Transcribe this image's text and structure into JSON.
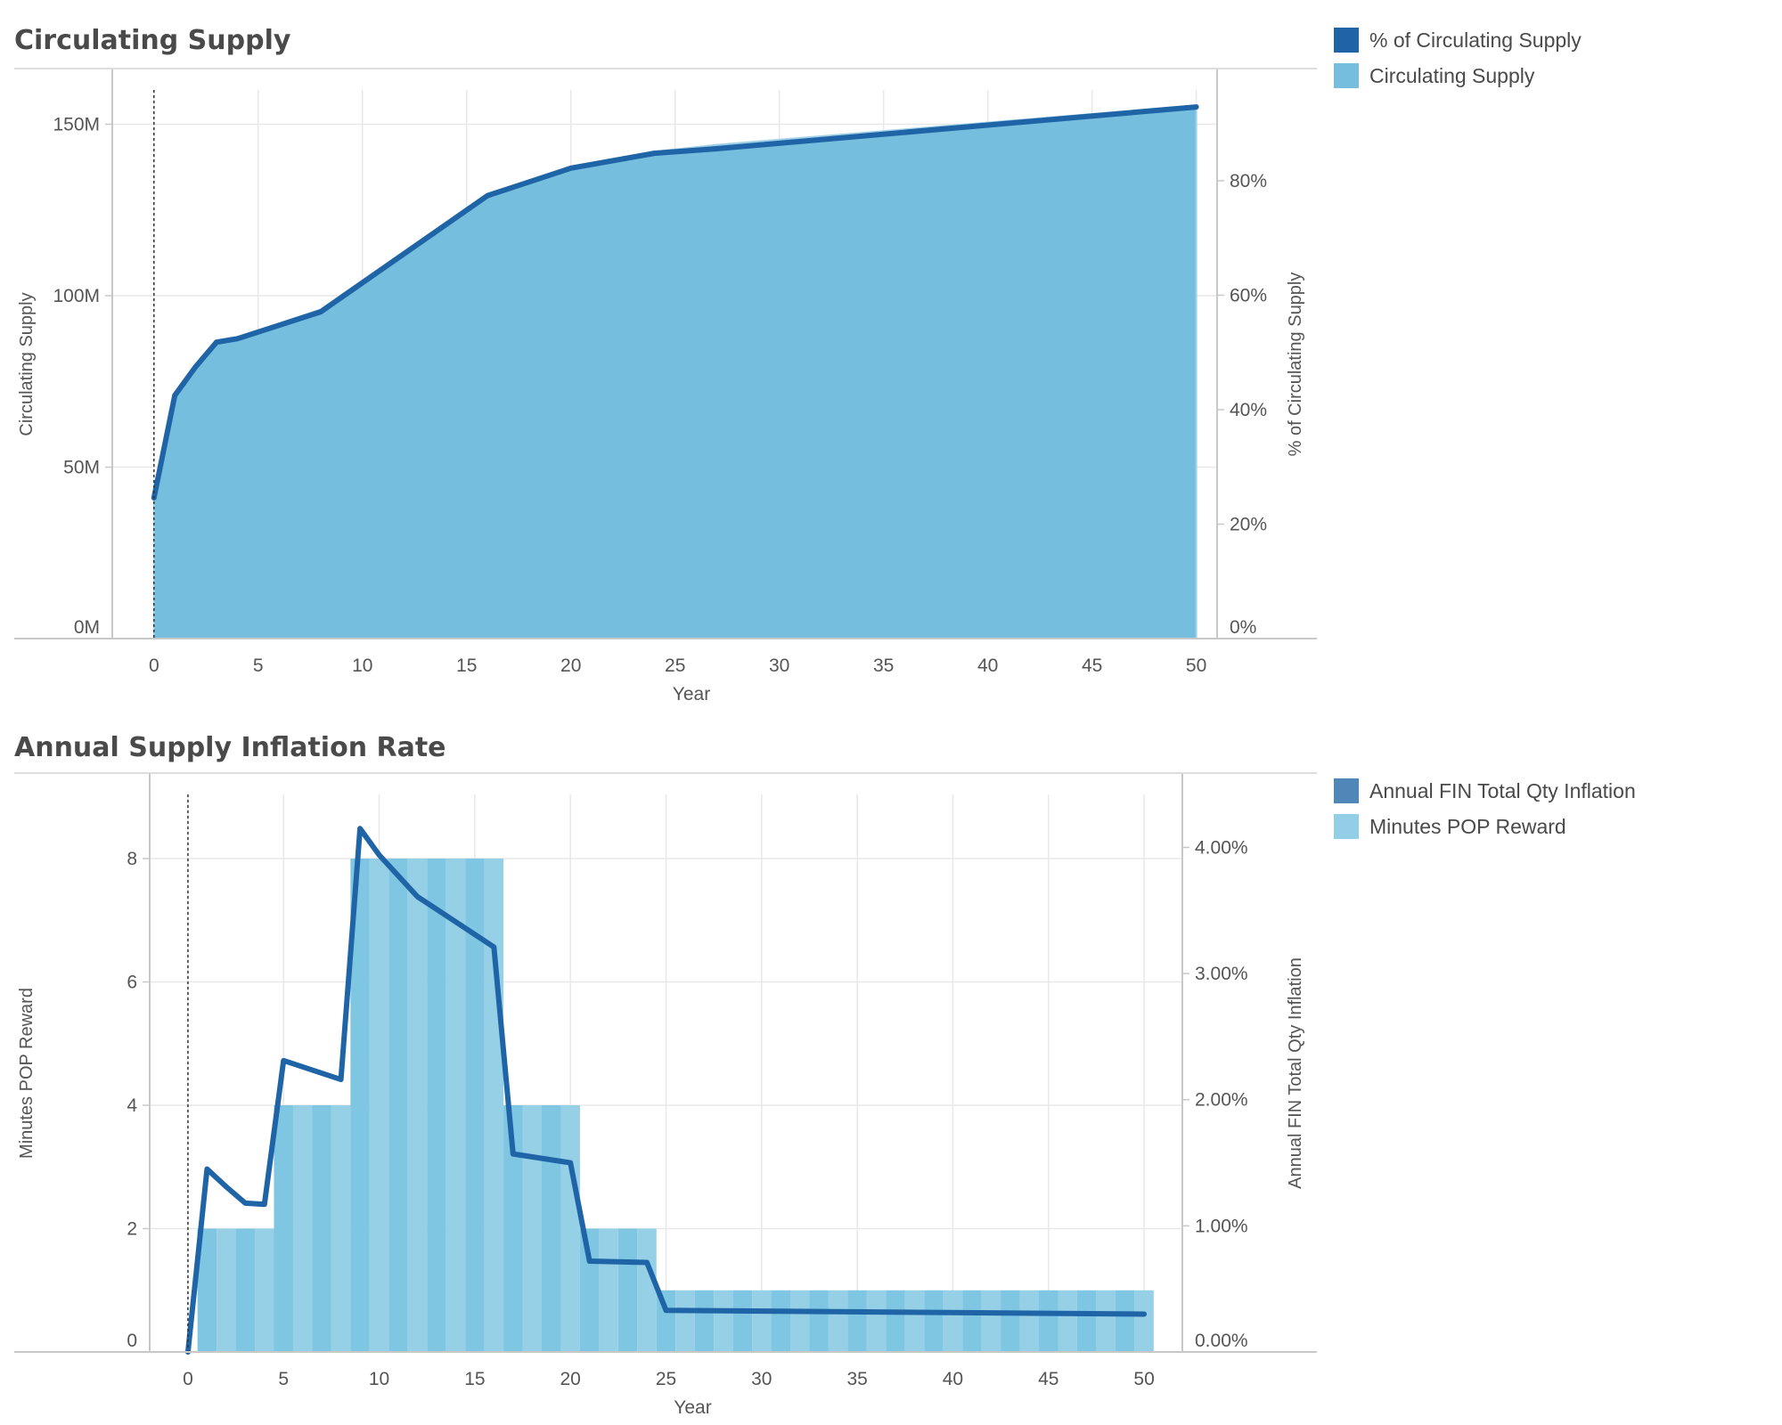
{
  "colors": {
    "pct_line": "#1f64a6",
    "supply_area": "#75bedd",
    "inflation_line": "#1f64a6",
    "reward_bars": "#7ec6e2",
    "legend_inflation": "#4e87b8",
    "legend_reward": "#92cfe6",
    "grid": "#e8e8e8",
    "axis": "#c8c8c8"
  },
  "chart_data": [
    {
      "type": "area",
      "title": "Circulating Supply",
      "xlabel": "Year",
      "ylabel": "Circulating Supply",
      "y2label": "% of Circulating Supply",
      "xlim": [
        -2,
        51
      ],
      "ylim": [
        0,
        160000000
      ],
      "y2lim": [
        0,
        0.9587
      ],
      "x_ticks": [
        "0",
        "5",
        "10",
        "15",
        "20",
        "25",
        "30",
        "35",
        "40",
        "45",
        "50"
      ],
      "y_ticks": [
        "0M",
        "50M",
        "100M",
        "150M"
      ],
      "y2_ticks": [
        "0%",
        "20%",
        "40%",
        "60%",
        "80%"
      ],
      "legend_position": "right",
      "reference_line_x": 0,
      "grid": true,
      "series": [
        {
          "name": "Circulating Supply",
          "kind": "area",
          "axis": "left",
          "x": [
            0,
            1,
            2,
            3,
            4,
            8,
            16,
            20,
            24,
            27,
            50
          ],
          "values": [
            41500000,
            71000000,
            79500000,
            86800000,
            87800000,
            96000000,
            129800000,
            137500000,
            142000000,
            144000000,
            155500000
          ]
        },
        {
          "name": "% of Circulating Supply",
          "kind": "line",
          "axis": "right",
          "x": [
            0,
            1,
            2,
            3,
            4,
            8,
            16,
            20,
            24,
            27,
            50
          ],
          "values": [
            0.246,
            0.425,
            0.475,
            0.518,
            0.524,
            0.571,
            0.774,
            0.822,
            0.848,
            0.856,
            0.929
          ]
        }
      ]
    },
    {
      "type": "bar",
      "title": "Annual Supply Inflation Rate",
      "xlabel": "Year",
      "ylabel": "Minutes POP Reward",
      "y2label": "Annual FIN Total Qty Inflation",
      "xlim": [
        -2,
        52
      ],
      "ylim": [
        0,
        9.04
      ],
      "y2lim": [
        0,
        0.0442
      ],
      "x_ticks": [
        "0",
        "5",
        "10",
        "15",
        "20",
        "25",
        "30",
        "35",
        "40",
        "45",
        "50"
      ],
      "y_ticks": [
        "0",
        "2",
        "4",
        "6",
        "8"
      ],
      "y2_ticks": [
        "0.00%",
        "1.00%",
        "2.00%",
        "3.00%",
        "4.00%"
      ],
      "legend_position": "right",
      "reference_line_x": 0,
      "grid": true,
      "series": [
        {
          "name": "Minutes POP Reward",
          "kind": "bar",
          "axis": "left",
          "x": [
            1,
            2,
            3,
            4,
            5,
            6,
            7,
            8,
            9,
            10,
            11,
            12,
            13,
            14,
            15,
            16,
            17,
            18,
            19,
            20,
            21,
            22,
            23,
            24,
            25,
            26,
            27,
            28,
            29,
            30,
            31,
            32,
            33,
            34,
            35,
            36,
            37,
            38,
            39,
            40,
            41,
            42,
            43,
            44,
            45,
            46,
            47,
            48,
            49,
            50
          ],
          "values": [
            2,
            2,
            2,
            2,
            4,
            4,
            4,
            4,
            8,
            8,
            8,
            8,
            8,
            8,
            8,
            8,
            4,
            4,
            4,
            4,
            2,
            2,
            2,
            2,
            1,
            1,
            1,
            1,
            1,
            1,
            1,
            1,
            1,
            1,
            1,
            1,
            1,
            1,
            1,
            1,
            1,
            1,
            1,
            1,
            1,
            1,
            1,
            1,
            1,
            1
          ]
        },
        {
          "name": "Annual FIN Total Qty Inflation",
          "kind": "line",
          "axis": "right",
          "x": [
            0,
            1,
            2,
            3,
            4,
            5,
            8,
            9,
            10,
            12,
            14,
            16,
            17,
            20,
            21,
            24,
            25,
            50
          ],
          "values": [
            0,
            0.0145,
            0.0131,
            0.0118,
            0.0117,
            0.0231,
            0.0216,
            0.0415,
            0.0394,
            0.0361,
            0.0341,
            0.0321,
            0.0157,
            0.015,
            0.0072,
            0.0071,
            0.0033,
            0.003
          ]
        }
      ]
    }
  ]
}
